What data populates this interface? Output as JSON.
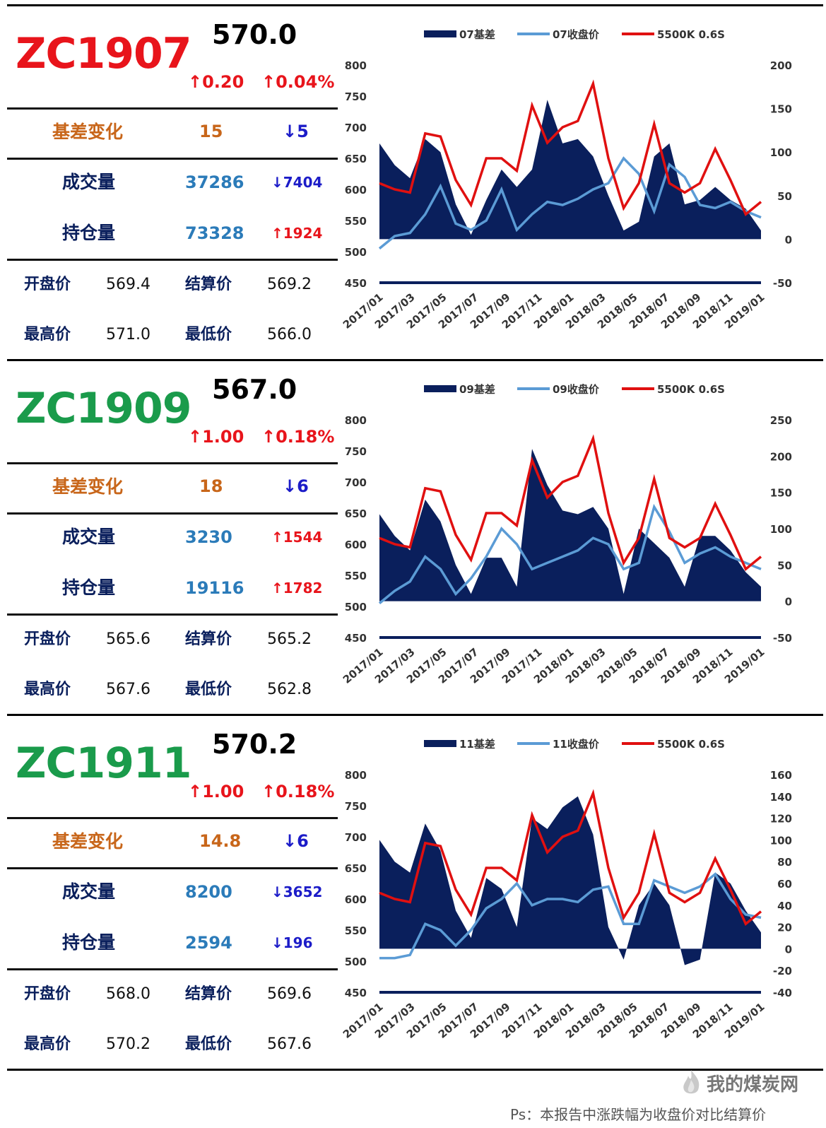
{
  "panels": [
    {
      "code": "ZC1907",
      "code_color": "#e8141b",
      "price": "570.0",
      "chg": "↑0.20",
      "chg_pct": "↑0.04%",
      "basis_label": "基差变化",
      "basis_value": "15",
      "basis_delta": "↓5",
      "vol_label": "成交量",
      "vol_value": "37286",
      "vol_delta": "↓7404",
      "oi_label": "持仓量",
      "oi_value": "73328",
      "oi_delta": "↑1924",
      "open_label": "开盘价",
      "open": "569.4",
      "settle_label": "结算价",
      "settle": "569.2",
      "high_label": "最高价",
      "high": "571.0",
      "low_label": "最低价",
      "low": "566.0"
    },
    {
      "code": "ZC1909",
      "code_color": "#1a9b4b",
      "price": "567.0",
      "chg": "↑1.00",
      "chg_pct": "↑0.18%",
      "basis_label": "基差变化",
      "basis_value": "18",
      "basis_delta": "↓6",
      "vol_label": "成交量",
      "vol_value": "3230",
      "vol_delta": "↑1544",
      "oi_label": "持仓量",
      "oi_value": "19116",
      "oi_delta": "↑1782",
      "open_label": "开盘价",
      "open": "565.6",
      "settle_label": "结算价",
      "settle": "565.2",
      "high_label": "最高价",
      "high": "567.6",
      "low_label": "最低价",
      "low": "562.8"
    },
    {
      "code": "ZC1911",
      "code_color": "#1a9b4b",
      "price": "570.2",
      "chg": "↑1.00",
      "chg_pct": "↑0.18%",
      "basis_label": "基差变化",
      "basis_value": "14.8",
      "basis_delta": "↓6",
      "vol_label": "成交量",
      "vol_value": "8200",
      "vol_delta": "↓3652",
      "oi_label": "持仓量",
      "oi_value": "2594",
      "oi_delta": "↓196",
      "open_label": "开盘价",
      "open": "568.0",
      "settle_label": "结算价",
      "settle": "569.6",
      "high_label": "最高价",
      "high": "570.2",
      "low_label": "最低价",
      "low": "567.6"
    }
  ],
  "colors": {
    "up": "#e8141b",
    "down": "#1c1cc8",
    "basis_label": "#c8661a",
    "value_blue": "#2b7bb9",
    "area": "#0a1f5c",
    "close_line": "#5b9bd5",
    "ref_line": "#e01010"
  },
  "chart_data": [
    {
      "type": "area+line",
      "legend": [
        "07基差",
        "07收盘价",
        "5500K 0.6S"
      ],
      "x": [
        "2017/01",
        "2017/02",
        "2017/03",
        "2017/04",
        "2017/05",
        "2017/06",
        "2017/07",
        "2017/08",
        "2017/09",
        "2017/10",
        "2017/11",
        "2017/12",
        "2018/01",
        "2018/02",
        "2018/03",
        "2018/04",
        "2018/05",
        "2018/06",
        "2018/07",
        "2018/08",
        "2018/09",
        "2018/10",
        "2018/11",
        "2018/12",
        "2019/01",
        "2019/02"
      ],
      "x_ticks": [
        "2017/01",
        "2017/03",
        "2017/05",
        "2017/07",
        "2017/09",
        "2017/11",
        "2018/01",
        "2018/03",
        "2018/05",
        "2018/07",
        "2018/09",
        "2018/11",
        "2019/01"
      ],
      "ylim_left": [
        450,
        800
      ],
      "yticks_left": [
        450,
        500,
        550,
        600,
        650,
        700,
        750,
        800
      ],
      "ylim_right": [
        -50,
        200
      ],
      "yticks_right": [
        -50,
        0,
        50,
        100,
        150,
        200
      ],
      "series": [
        {
          "name": "07基差",
          "axis": "right",
          "values": [
            110,
            85,
            70,
            115,
            100,
            40,
            5,
            45,
            80,
            60,
            80,
            160,
            110,
            115,
            95,
            50,
            10,
            20,
            95,
            110,
            40,
            45,
            60,
            45,
            35,
            10
          ]
        },
        {
          "name": "07收盘价",
          "axis": "left",
          "values": [
            505,
            525,
            530,
            560,
            605,
            545,
            535,
            550,
            600,
            535,
            560,
            580,
            575,
            585,
            600,
            610,
            650,
            625,
            565,
            640,
            620,
            575,
            570,
            580,
            565,
            555
          ]
        },
        {
          "name": "5500K 0.6S",
          "axis": "left",
          "values": [
            610,
            600,
            595,
            690,
            685,
            615,
            575,
            650,
            650,
            630,
            735,
            675,
            700,
            710,
            770,
            650,
            570,
            610,
            705,
            610,
            595,
            610,
            665,
            615,
            560,
            580
          ]
        }
      ]
    },
    {
      "type": "area+line",
      "legend": [
        "09基差",
        "09收盘价",
        "5500K 0.6S"
      ],
      "x": [
        "2017/01",
        "2017/02",
        "2017/03",
        "2017/04",
        "2017/05",
        "2017/06",
        "2017/07",
        "2017/08",
        "2017/09",
        "2017/10",
        "2017/11",
        "2017/12",
        "2018/01",
        "2018/02",
        "2018/03",
        "2018/04",
        "2018/05",
        "2018/06",
        "2018/07",
        "2018/08",
        "2018/09",
        "2018/10",
        "2018/11",
        "2018/12",
        "2019/01",
        "2019/02"
      ],
      "x_ticks": [
        "2017/01",
        "2017/03",
        "2017/05",
        "2017/07",
        "2017/09",
        "2017/11",
        "2018/01",
        "2018/03",
        "2018/05",
        "2018/07",
        "2018/09",
        "2018/11",
        "2019/01"
      ],
      "ylim_left": [
        450,
        800
      ],
      "yticks_left": [
        450,
        500,
        550,
        600,
        650,
        700,
        750,
        800
      ],
      "ylim_right": [
        -50,
        250
      ],
      "yticks_right": [
        -50,
        0,
        50,
        100,
        150,
        200,
        250
      ],
      "series": [
        {
          "name": "09基差",
          "axis": "right",
          "values": [
            120,
            90,
            70,
            140,
            110,
            50,
            10,
            60,
            60,
            20,
            210,
            160,
            125,
            120,
            130,
            100,
            10,
            100,
            80,
            60,
            20,
            90,
            90,
            70,
            40,
            20
          ]
        },
        {
          "name": "09收盘价",
          "axis": "left",
          "values": [
            505,
            525,
            540,
            580,
            560,
            520,
            545,
            580,
            625,
            600,
            560,
            570,
            580,
            590,
            610,
            600,
            560,
            570,
            660,
            620,
            570,
            585,
            595,
            580,
            570,
            560
          ]
        },
        {
          "name": "5500K 0.6S",
          "axis": "left",
          "values": [
            610,
            600,
            595,
            690,
            685,
            615,
            575,
            650,
            650,
            630,
            735,
            675,
            700,
            710,
            770,
            650,
            570,
            610,
            705,
            610,
            595,
            610,
            665,
            615,
            560,
            580
          ]
        }
      ]
    },
    {
      "type": "area+line",
      "legend": [
        "11基差",
        "11收盘价",
        "5500K 0.6S"
      ],
      "x": [
        "2017/01",
        "2017/02",
        "2017/03",
        "2017/04",
        "2017/05",
        "2017/06",
        "2017/07",
        "2017/08",
        "2017/09",
        "2017/10",
        "2017/11",
        "2017/12",
        "2018/01",
        "2018/02",
        "2018/03",
        "2018/04",
        "2018/05",
        "2018/06",
        "2018/07",
        "2018/08",
        "2018/09",
        "2018/10",
        "2018/11",
        "2018/12",
        "2019/01",
        "2019/02"
      ],
      "x_ticks": [
        "2017/01",
        "2017/03",
        "2017/05",
        "2017/07",
        "2017/09",
        "2017/11",
        "2018/01",
        "2018/03",
        "2018/05",
        "2018/07",
        "2018/09",
        "2018/11",
        "2019/01"
      ],
      "ylim_left": [
        450,
        800
      ],
      "yticks_left": [
        450,
        500,
        550,
        600,
        650,
        700,
        750,
        800
      ],
      "ylim_right": [
        -40,
        160
      ],
      "yticks_right": [
        -40,
        -20,
        0,
        20,
        40,
        60,
        80,
        100,
        120,
        140,
        160
      ],
      "series": [
        {
          "name": "11基差",
          "axis": "right",
          "values": [
            100,
            80,
            70,
            115,
            90,
            35,
            10,
            65,
            55,
            20,
            120,
            110,
            130,
            140,
            105,
            20,
            -10,
            40,
            60,
            40,
            -15,
            -10,
            70,
            60,
            35,
            15
          ]
        },
        {
          "name": "11收盘价",
          "axis": "left",
          "values": [
            505,
            505,
            510,
            560,
            550,
            525,
            550,
            585,
            600,
            625,
            590,
            600,
            600,
            595,
            615,
            620,
            560,
            560,
            630,
            620,
            610,
            620,
            640,
            600,
            575,
            570
          ]
        },
        {
          "name": "5500K 0.6S",
          "axis": "left",
          "values": [
            610,
            600,
            595,
            690,
            685,
            615,
            575,
            650,
            650,
            630,
            735,
            675,
            700,
            710,
            770,
            650,
            570,
            610,
            705,
            610,
            595,
            610,
            665,
            615,
            560,
            580
          ]
        }
      ]
    }
  ],
  "footer": "Ps：本报告中涨跌幅为收盘价对比结算价",
  "watermark": "我的煤炭网"
}
